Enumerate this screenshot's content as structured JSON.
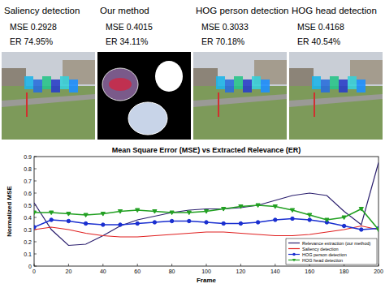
{
  "panels": [
    {
      "title": "Saliency detection",
      "mse": "MSE 0.2928",
      "er": "ER 74.95%"
    },
    {
      "title": "Our method",
      "mse": "MSE 0.4015",
      "er": "ER 34.11%"
    },
    {
      "title": "HOG person detection",
      "mse": "MSE 0.3033",
      "er": "ER 70.18%"
    },
    {
      "title": "HOG head detection",
      "mse": "MSE 0.4168",
      "er": "ER 40.54%"
    }
  ],
  "chart_data": {
    "type": "line",
    "title": "Mean Square Error (MSE) vs Extracted Relevance (ER)",
    "x_label": "Frame",
    "y_label": "Normalized MSE",
    "x": [
      0,
      10,
      20,
      30,
      40,
      50,
      60,
      70,
      80,
      90,
      100,
      110,
      120,
      130,
      140,
      150,
      160,
      170,
      180,
      190,
      200
    ],
    "series": [
      {
        "name": "Relevance extraction (our method)",
        "color": "#2b1f6e",
        "marker": "none",
        "line_style": "solid",
        "values": [
          0.52,
          0.3,
          0.17,
          0.18,
          0.25,
          0.33,
          0.38,
          0.41,
          0.44,
          0.46,
          0.47,
          0.47,
          0.48,
          0.5,
          0.54,
          0.58,
          0.6,
          0.58,
          0.45,
          0.34,
          0.85
        ]
      },
      {
        "name": "Saliency detection",
        "color": "#e02020",
        "marker": "none",
        "line_style": "solid",
        "values": [
          0.3,
          0.32,
          0.3,
          0.27,
          0.25,
          0.24,
          0.24,
          0.25,
          0.26,
          0.27,
          0.28,
          0.28,
          0.27,
          0.26,
          0.25,
          0.25,
          0.26,
          0.28,
          0.3,
          0.33,
          0.3
        ]
      },
      {
        "name": "HOG person detection",
        "color": "#1a2fd0",
        "marker": "circle",
        "line_style": "solid",
        "values": [
          0.32,
          0.38,
          0.37,
          0.35,
          0.34,
          0.34,
          0.35,
          0.36,
          0.37,
          0.37,
          0.36,
          0.35,
          0.35,
          0.36,
          0.38,
          0.39,
          0.38,
          0.36,
          0.33,
          0.3,
          0.31
        ]
      },
      {
        "name": "HOG head detection",
        "color": "#22a022",
        "marker": "triangle",
        "line_style": "solid",
        "values": [
          0.44,
          0.44,
          0.43,
          0.42,
          0.43,
          0.45,
          0.46,
          0.45,
          0.44,
          0.44,
          0.45,
          0.47,
          0.49,
          0.5,
          0.49,
          0.46,
          0.42,
          0.38,
          0.4,
          0.47,
          0.3
        ]
      }
    ],
    "xlim": [
      0,
      200
    ],
    "xticks": [
      0,
      20,
      40,
      60,
      80,
      100,
      120,
      140,
      160,
      180,
      200
    ],
    "ylim": [
      0,
      0.9
    ],
    "yticks": [
      0,
      0.1,
      0.2,
      0.3,
      0.4,
      0.5,
      0.6,
      0.7,
      0.8,
      0.9
    ],
    "grid": false,
    "legend": "lower right"
  }
}
